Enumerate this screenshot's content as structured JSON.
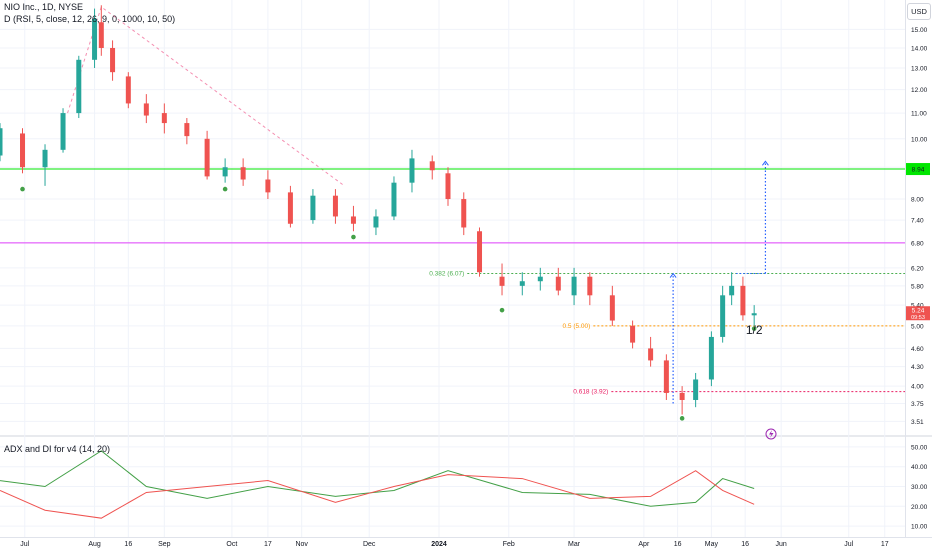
{
  "header": {
    "title": "NIO Inc., 1D, NYSE",
    "indicator": "D (RSI, 5, close, 12, 26, 9, 0, 1000, 10, 50)",
    "sub_indicator": "ADX and DI for v4 (14, 20)",
    "currency": "USD"
  },
  "price_tag": {
    "value": "5.24",
    "countdown": "09:53"
  },
  "levels": [
    {
      "label": "0.382 (6.07)",
      "price": 6.07,
      "color": "#4caf50"
    },
    {
      "label": "0.5 (5.00)",
      "price": 5.0,
      "color": "#ff9800"
    },
    {
      "label": "0.618 (3.92)",
      "price": 3.92,
      "color": "#e91e63"
    }
  ],
  "hlines": [
    {
      "price": 8.94,
      "color": "#00e600",
      "tag": "8.94"
    },
    {
      "price": 6.8,
      "color": "#e040fb"
    }
  ],
  "annotation": "1/2",
  "chart_data": [
    {
      "type": "candlestick",
      "title": "NIO Inc., 1D, NYSE",
      "xlabel": "",
      "ylabel": "",
      "ylim": [
        3.35,
        16.6
      ],
      "y_scale": "log",
      "y_ticks": [
        3.51,
        3.75,
        4.0,
        4.3,
        4.6,
        5.0,
        5.4,
        5.8,
        6.2,
        6.8,
        7.4,
        8.0,
        9.0,
        10.0,
        11.0,
        12.0,
        13.0,
        14.0,
        15.0
      ],
      "x_ticks": [
        "Jul",
        "Aug",
        "16",
        "Sep",
        "Oct",
        "17",
        "Nov",
        "Dec",
        "2024",
        "Feb",
        "Mar",
        "Apr",
        "16",
        "May",
        "16",
        "Jun",
        "Jul",
        "17"
      ],
      "x_range": [
        "2023-06-20",
        "2024-07-26"
      ],
      "x_tick_dates": [
        "2023-07-01",
        "2023-08-01",
        "2023-08-16",
        "2023-09-01",
        "2023-10-01",
        "2023-10-17",
        "2023-11-01",
        "2023-12-01",
        "2024-01-01",
        "2024-02-01",
        "2024-03-01",
        "2024-04-01",
        "2024-04-16",
        "2024-05-01",
        "2024-05-16",
        "2024-06-01",
        "2024-07-01",
        "2024-07-17"
      ],
      "candles": [
        [
          "2023-06-20",
          9.4,
          10.6,
          9.2,
          10.4
        ],
        [
          "2023-06-30",
          10.2,
          10.4,
          8.8,
          9.0
        ],
        [
          "2023-07-10",
          9.0,
          9.8,
          8.4,
          9.6
        ],
        [
          "2023-07-18",
          9.6,
          11.2,
          9.5,
          11.0
        ],
        [
          "2023-07-25",
          11.0,
          13.6,
          10.8,
          13.4
        ],
        [
          "2023-08-01",
          13.4,
          16.2,
          13.0,
          15.6
        ],
        [
          "2023-08-04",
          15.4,
          16.4,
          13.6,
          14.0
        ],
        [
          "2023-08-09",
          14.0,
          14.4,
          12.4,
          12.8
        ],
        [
          "2023-08-16",
          12.6,
          12.8,
          11.2,
          11.4
        ],
        [
          "2023-08-24",
          11.4,
          11.8,
          10.6,
          10.9
        ],
        [
          "2023-09-01",
          11.0,
          11.4,
          10.2,
          10.6
        ],
        [
          "2023-09-11",
          10.6,
          10.8,
          9.8,
          10.1
        ],
        [
          "2023-09-20",
          10.0,
          10.3,
          8.6,
          8.7
        ],
        [
          "2023-09-28",
          8.7,
          9.3,
          8.5,
          9.0
        ],
        [
          "2023-10-06",
          9.0,
          9.3,
          8.4,
          8.6
        ],
        [
          "2023-10-17",
          8.6,
          8.9,
          8.0,
          8.2
        ],
        [
          "2023-10-27",
          8.2,
          8.4,
          7.2,
          7.3
        ],
        [
          "2023-11-06",
          7.4,
          8.3,
          7.3,
          8.1
        ],
        [
          "2023-11-16",
          8.1,
          8.3,
          7.3,
          7.5
        ],
        [
          "2023-11-24",
          7.5,
          7.8,
          7.1,
          7.3
        ],
        [
          "2023-12-04",
          7.2,
          7.7,
          7.0,
          7.5
        ],
        [
          "2023-12-12",
          7.5,
          8.7,
          7.4,
          8.5
        ],
        [
          "2023-12-20",
          8.5,
          9.6,
          8.2,
          9.3
        ],
        [
          "2023-12-29",
          9.2,
          9.4,
          8.6,
          8.9
        ],
        [
          "2024-01-05",
          8.8,
          9.0,
          7.8,
          8.0
        ],
        [
          "2024-01-12",
          8.0,
          8.2,
          7.0,
          7.2
        ],
        [
          "2024-01-19",
          7.1,
          7.2,
          6.0,
          6.1
        ],
        [
          "2024-01-29",
          6.0,
          6.3,
          5.6,
          5.8
        ],
        [
          "2024-02-07",
          5.8,
          6.1,
          5.6,
          5.9
        ],
        [
          "2024-02-15",
          5.9,
          6.2,
          5.7,
          6.0
        ],
        [
          "2024-02-23",
          6.0,
          6.2,
          5.6,
          5.7
        ],
        [
          "2024-03-01",
          5.6,
          6.2,
          5.4,
          6.0
        ],
        [
          "2024-03-08",
          6.0,
          6.1,
          5.4,
          5.6
        ],
        [
          "2024-03-18",
          5.6,
          5.8,
          5.0,
          5.1
        ],
        [
          "2024-03-27",
          5.0,
          5.1,
          4.6,
          4.7
        ],
        [
          "2024-04-04",
          4.6,
          4.8,
          4.3,
          4.4
        ],
        [
          "2024-04-11",
          4.4,
          4.5,
          3.8,
          3.9
        ],
        [
          "2024-04-18",
          3.9,
          4.0,
          3.6,
          3.8
        ],
        [
          "2024-04-24",
          3.8,
          4.2,
          3.7,
          4.1
        ],
        [
          "2024-05-01",
          4.1,
          4.9,
          4.0,
          4.8
        ],
        [
          "2024-05-06",
          4.8,
          5.8,
          4.7,
          5.6
        ],
        [
          "2024-05-10",
          5.6,
          6.1,
          5.4,
          5.8
        ],
        [
          "2024-05-15",
          5.8,
          6.0,
          5.1,
          5.2
        ],
        [
          "2024-05-20",
          5.2,
          5.4,
          5.0,
          5.24
        ]
      ],
      "fib_projection_top": 9.2,
      "fib_projection_bottom": 3.75
    },
    {
      "type": "line",
      "title": "ADX and DI for v4 (14, 20)",
      "ylim": [
        5,
        55
      ],
      "y_ticks": [
        10.0,
        20.0,
        30.0,
        40.0,
        50.0
      ],
      "x": [
        "2023-06-20",
        "2023-07-10",
        "2023-08-04",
        "2023-08-24",
        "2023-09-20",
        "2023-10-17",
        "2023-11-16",
        "2023-12-12",
        "2024-01-05",
        "2024-02-07",
        "2024-03-08",
        "2024-04-04",
        "2024-04-24",
        "2024-05-06",
        "2024-05-20"
      ],
      "series": [
        {
          "name": "",
          "color": "#43a047",
          "values": [
            33,
            30,
            48,
            30,
            24,
            30,
            25,
            28,
            38,
            27,
            26,
            20,
            22,
            34,
            29
          ]
        },
        {
          "name": "",
          "color": "#ef5350",
          "values": [
            28,
            18,
            14,
            27,
            30,
            33,
            22,
            30,
            36,
            34,
            24,
            25,
            38,
            28,
            21
          ]
        }
      ]
    }
  ]
}
